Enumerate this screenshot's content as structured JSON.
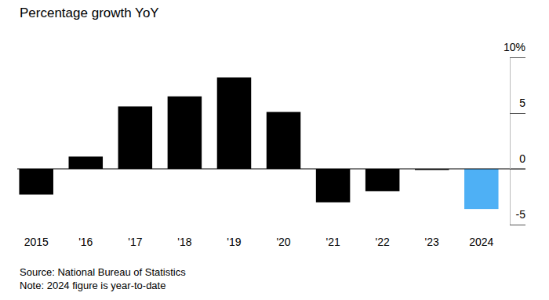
{
  "chart_data": {
    "type": "bar",
    "title": "Percentage growth YoY",
    "categories": [
      "2015",
      "'16",
      "'17",
      "'18",
      "'19",
      "'20",
      "'21",
      "'22",
      "'23",
      "2024"
    ],
    "values": [
      -2.3,
      1.1,
      5.6,
      6.5,
      8.2,
      5.1,
      -3.0,
      -2.0,
      -0.1,
      -3.6
    ],
    "colors": [
      "#000000",
      "#000000",
      "#000000",
      "#000000",
      "#000000",
      "#000000",
      "#000000",
      "#000000",
      "#000000",
      "#4eb0f5"
    ],
    "ylim": [
      -5,
      10
    ],
    "yticks": [
      {
        "value": 10,
        "label": "10%"
      },
      5,
      0,
      -5
    ],
    "grid": false,
    "annotations": [
      "Source: National Bureau of Statistics",
      "Note: 2024 figure is year-to-date"
    ]
  }
}
